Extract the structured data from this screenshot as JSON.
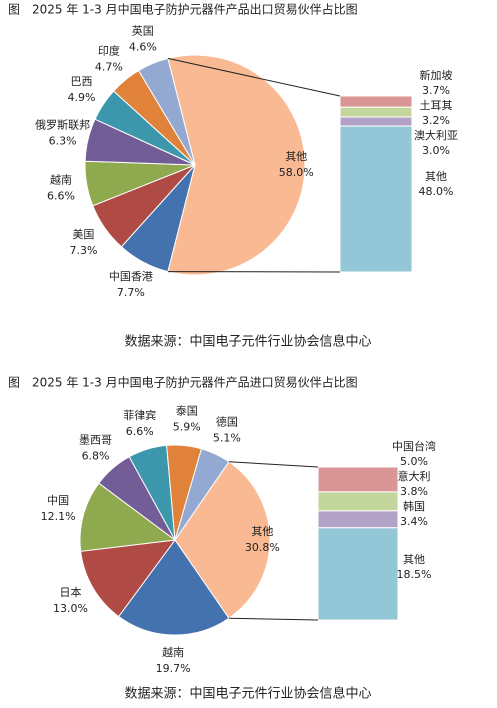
{
  "chart_data": [
    {
      "type": "pie",
      "title": "图　2025 年 1-3 月中国电子防护元器件产品出口贸易伙伴占比图",
      "categories": [
        "其他",
        "中国香港",
        "美国",
        "越南",
        "俄罗斯联邦",
        "巴西",
        "印度",
        "英国"
      ],
      "values": [
        58.0,
        7.7,
        7.3,
        6.6,
        6.3,
        4.9,
        4.7,
        4.6
      ],
      "value_labels": [
        "58.0%",
        "7.7%",
        "7.3%",
        "6.6%",
        "6.3%",
        "4.9%",
        "4.7%",
        "4.6%"
      ],
      "colors": [
        "#f9b993",
        "#4472ae",
        "#b04a45",
        "#8faa4e",
        "#735d97",
        "#3c97ac",
        "#e0823a",
        "#93a9d1"
      ],
      "bar": {
        "categories": [
          "新加坡",
          "土耳其",
          "澳大利亚",
          "其他"
        ],
        "values": [
          3.7,
          3.2,
          3.0,
          48.0
        ],
        "value_labels": [
          "3.7%",
          "3.2%",
          "3.0%",
          "48.0%"
        ],
        "colors": [
          "#d99694",
          "#c3d69b",
          "#b3a2c7",
          "#93c6d6"
        ]
      },
      "source": "数据来源：中国电子元件行业协会信息中心"
    },
    {
      "type": "pie",
      "title": "图　2025 年 1-3 月中国电子防护元器件产品进口贸易伙伴占比图",
      "categories": [
        "其他",
        "越南",
        "日本",
        "中国",
        "墨西哥",
        "菲律宾",
        "泰国",
        "德国"
      ],
      "values": [
        30.8,
        19.7,
        13.0,
        12.1,
        6.8,
        6.6,
        5.9,
        5.1
      ],
      "value_labels": [
        "30.8%",
        "19.7%",
        "13.0%",
        "12.1%",
        "6.8%",
        "6.6%",
        "5.9%",
        "5.1%"
      ],
      "colors": [
        "#f9b993",
        "#4472ae",
        "#b04a45",
        "#8faa4e",
        "#735d97",
        "#3c97ac",
        "#e0823a",
        "#93a9d1"
      ],
      "bar": {
        "categories": [
          "中国台湾",
          "意大利",
          "韩国",
          "其他"
        ],
        "values": [
          5.0,
          3.8,
          3.4,
          18.5
        ],
        "value_labels": [
          "5.0%",
          "3.8%",
          "3.4%",
          "18.5%"
        ],
        "colors": [
          "#d99694",
          "#c3d69b",
          "#b3a2c7",
          "#93c6d6"
        ]
      },
      "source": "数据来源：中国电子元件行业协会信息中心"
    }
  ]
}
